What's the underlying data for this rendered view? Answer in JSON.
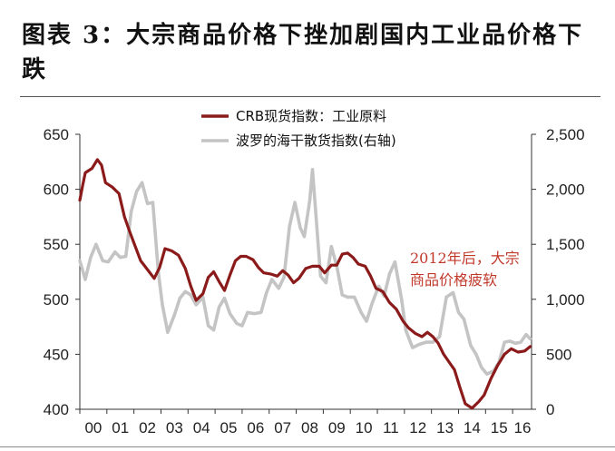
{
  "page": {
    "title": "图表 3：大宗商品价格下挫加剧国内工业品价格下跌"
  },
  "chart_data": {
    "type": "line",
    "title": "",
    "xlabel": "",
    "ylabel": "",
    "x_ticks": [
      "00",
      "01",
      "02",
      "03",
      "04",
      "05",
      "06",
      "07",
      "08",
      "09",
      "10",
      "11",
      "12",
      "13",
      "14",
      "15",
      "16"
    ],
    "x_range": [
      2000,
      2016.7
    ],
    "y_left": {
      "ticks": [
        "650",
        "600",
        "550",
        "500",
        "450",
        "400"
      ],
      "ylim": [
        400,
        650
      ]
    },
    "y_right": {
      "ticks": [
        "2,500",
        "2,000",
        "1,500",
        "1,000",
        "500",
        "0"
      ],
      "ylim": [
        0,
        2500
      ]
    },
    "grid": false,
    "legend_position": "top-center",
    "annotation": {
      "lines": [
        "2012年后，大宗",
        "商品价格疲软"
      ],
      "color": "#c0392b"
    },
    "series": [
      {
        "name": "CRB现货指数：工业原料",
        "axis": "left",
        "color": "#8b1a1a",
        "points": [
          [
            2000.0,
            590
          ],
          [
            2000.1,
            603
          ],
          [
            2000.2,
            615
          ],
          [
            2000.45,
            619
          ],
          [
            2000.65,
            627
          ],
          [
            2000.8,
            622
          ],
          [
            2000.95,
            606
          ],
          [
            2001.2,
            602
          ],
          [
            2001.45,
            596
          ],
          [
            2001.65,
            575
          ],
          [
            2001.85,
            561
          ],
          [
            2002.05,
            548
          ],
          [
            2002.25,
            535
          ],
          [
            2002.5,
            527
          ],
          [
            2002.75,
            519
          ],
          [
            2002.95,
            529
          ],
          [
            2003.15,
            546
          ],
          [
            2003.4,
            544
          ],
          [
            2003.65,
            540
          ],
          [
            2003.9,
            528
          ],
          [
            2004.1,
            512
          ],
          [
            2004.3,
            499
          ],
          [
            2004.55,
            505
          ],
          [
            2004.75,
            520
          ],
          [
            2004.95,
            525
          ],
          [
            2005.15,
            516
          ],
          [
            2005.35,
            508
          ],
          [
            2005.55,
            522
          ],
          [
            2005.75,
            535
          ],
          [
            2005.95,
            539
          ],
          [
            2006.15,
            539
          ],
          [
            2006.4,
            536
          ],
          [
            2006.6,
            529
          ],
          [
            2006.8,
            524
          ],
          [
            2007.05,
            523
          ],
          [
            2007.3,
            521
          ],
          [
            2007.5,
            526
          ],
          [
            2007.7,
            522
          ],
          [
            2007.9,
            515
          ],
          [
            2008.1,
            519
          ],
          [
            2008.35,
            528
          ],
          [
            2008.6,
            530
          ],
          [
            2008.85,
            530
          ],
          [
            2009.05,
            524
          ],
          [
            2009.3,
            531
          ],
          [
            2009.5,
            531
          ],
          [
            2009.7,
            541
          ],
          [
            2009.9,
            542
          ],
          [
            2010.1,
            538
          ],
          [
            2010.3,
            532
          ],
          [
            2010.55,
            530
          ],
          [
            2010.75,
            521
          ],
          [
            2010.95,
            510
          ],
          [
            2011.2,
            507
          ],
          [
            2011.45,
            497
          ],
          [
            2011.7,
            491
          ],
          [
            2011.95,
            480
          ],
          [
            2012.15,
            474
          ],
          [
            2012.4,
            469
          ],
          [
            2012.65,
            466
          ],
          [
            2012.85,
            470
          ],
          [
            2013.05,
            466
          ],
          [
            2013.25,
            460
          ],
          [
            2013.45,
            450
          ],
          [
            2013.65,
            443
          ],
          [
            2013.85,
            436
          ],
          [
            2014.05,
            420
          ],
          [
            2014.25,
            405
          ],
          [
            2014.5,
            401
          ],
          [
            2014.75,
            407
          ],
          [
            2014.95,
            413
          ],
          [
            2015.2,
            428
          ],
          [
            2015.45,
            440
          ],
          [
            2015.7,
            450
          ],
          [
            2015.95,
            455
          ],
          [
            2016.2,
            452
          ],
          [
            2016.45,
            453
          ],
          [
            2016.65,
            457
          ]
        ]
      },
      {
        "name": "波罗的海干散货指数(右轴)",
        "axis": "right",
        "color": "#c4c4c4",
        "points": [
          [
            2000.0,
            1350
          ],
          [
            2000.2,
            1180
          ],
          [
            2000.4,
            1380
          ],
          [
            2000.6,
            1500
          ],
          [
            2000.85,
            1350
          ],
          [
            2001.05,
            1340
          ],
          [
            2001.3,
            1430
          ],
          [
            2001.5,
            1380
          ],
          [
            2001.7,
            1390
          ],
          [
            2001.9,
            1800
          ],
          [
            2002.1,
            1980
          ],
          [
            2002.3,
            2060
          ],
          [
            2002.5,
            1870
          ],
          [
            2002.7,
            1880
          ],
          [
            2002.9,
            1250
          ],
          [
            2003.05,
            950
          ],
          [
            2003.25,
            700
          ],
          [
            2003.5,
            860
          ],
          [
            2003.7,
            1010
          ],
          [
            2003.9,
            1070
          ],
          [
            2004.1,
            1040
          ],
          [
            2004.3,
            950
          ],
          [
            2004.55,
            1020
          ],
          [
            2004.75,
            760
          ],
          [
            2004.95,
            720
          ],
          [
            2005.15,
            930
          ],
          [
            2005.35,
            1010
          ],
          [
            2005.55,
            870
          ],
          [
            2005.8,
            780
          ],
          [
            2006.0,
            760
          ],
          [
            2006.2,
            880
          ],
          [
            2006.45,
            870
          ],
          [
            2006.7,
            880
          ],
          [
            2006.9,
            1060
          ],
          [
            2007.1,
            1180
          ],
          [
            2007.35,
            1100
          ],
          [
            2007.55,
            1200
          ],
          [
            2007.75,
            1660
          ],
          [
            2007.95,
            1880
          ],
          [
            2008.15,
            1650
          ],
          [
            2008.3,
            1570
          ],
          [
            2008.5,
            1900
          ],
          [
            2008.6,
            2180
          ],
          [
            2008.75,
            1700
          ],
          [
            2008.9,
            1210
          ],
          [
            2009.1,
            1150
          ],
          [
            2009.3,
            1480
          ],
          [
            2009.5,
            1300
          ],
          [
            2009.7,
            1040
          ],
          [
            2009.9,
            1020
          ],
          [
            2010.15,
            1020
          ],
          [
            2010.4,
            880
          ],
          [
            2010.6,
            800
          ],
          [
            2010.8,
            960
          ],
          [
            2011.05,
            1120
          ],
          [
            2011.25,
            1030
          ],
          [
            2011.45,
            1230
          ],
          [
            2011.65,
            1340
          ],
          [
            2011.9,
            990
          ],
          [
            2012.05,
            720
          ],
          [
            2012.3,
            560
          ],
          [
            2012.55,
            590
          ],
          [
            2012.8,
            610
          ],
          [
            2013.05,
            610
          ],
          [
            2013.3,
            660
          ],
          [
            2013.55,
            1020
          ],
          [
            2013.8,
            1060
          ],
          [
            2014.0,
            880
          ],
          [
            2014.2,
            820
          ],
          [
            2014.45,
            580
          ],
          [
            2014.65,
            500
          ],
          [
            2014.85,
            380
          ],
          [
            2015.05,
            320
          ],
          [
            2015.3,
            350
          ],
          [
            2015.5,
            430
          ],
          [
            2015.7,
            610
          ],
          [
            2015.9,
            620
          ],
          [
            2016.1,
            600
          ],
          [
            2016.3,
            610
          ],
          [
            2016.5,
            680
          ],
          [
            2016.65,
            640
          ]
        ]
      }
    ]
  }
}
